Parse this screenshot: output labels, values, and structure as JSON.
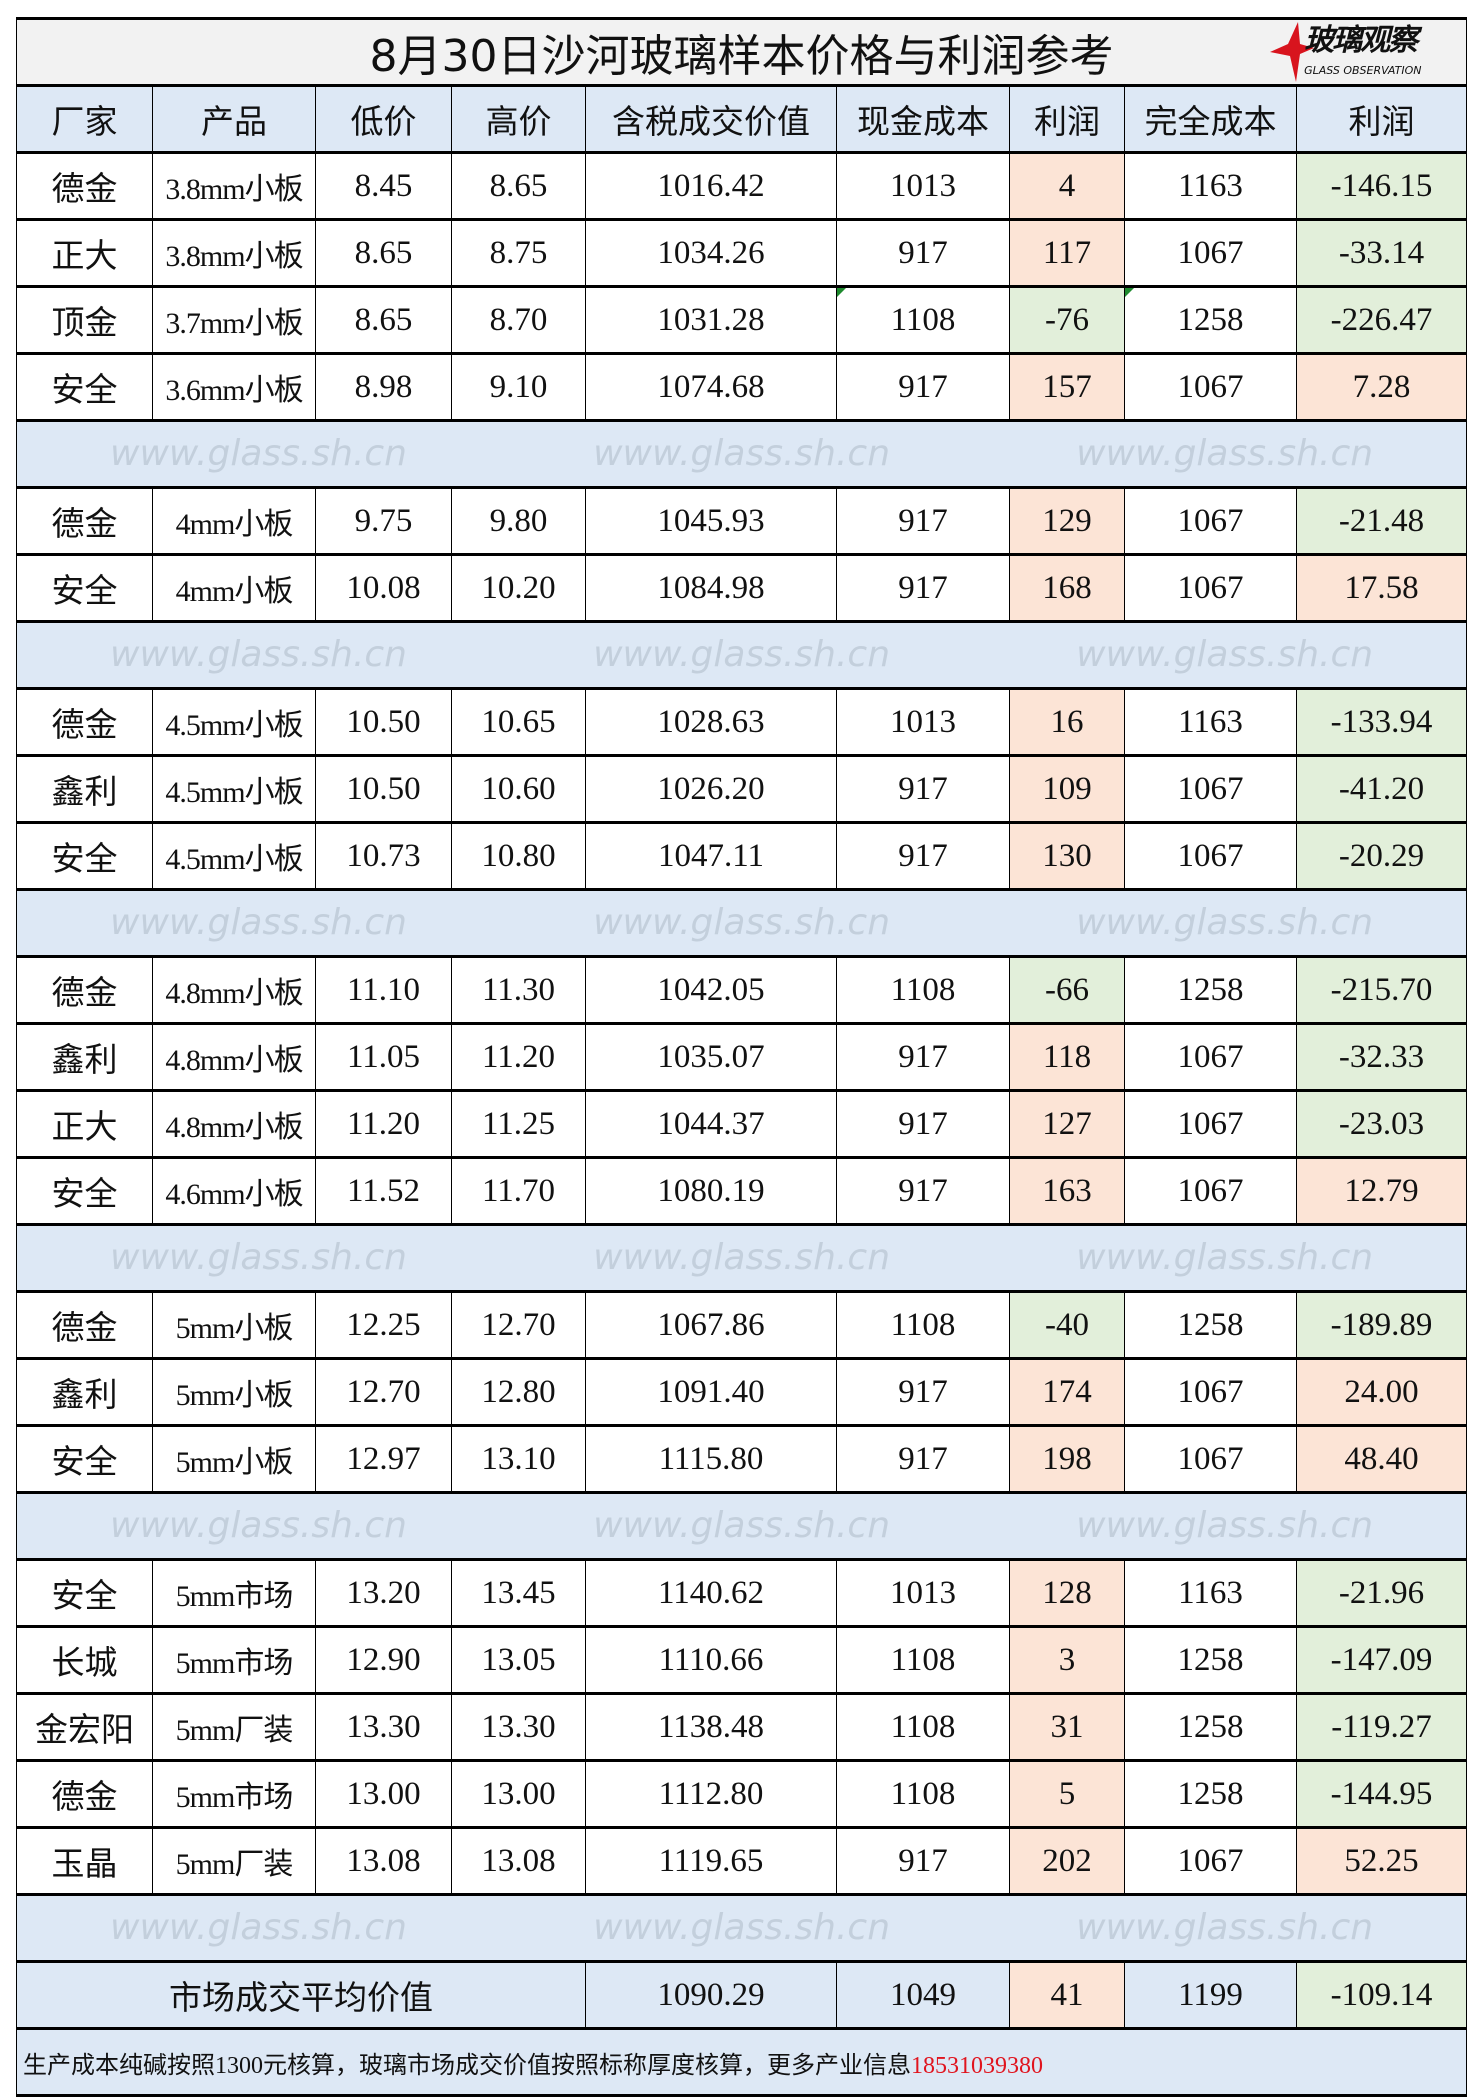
{
  "title": "8月30日沙河玻璃样本价格与利润参考",
  "logo": {
    "text_zh": "玻璃观察",
    "text_en": "GLASS OBSERVATION"
  },
  "watermark": "www.glass.sh.cn",
  "colors": {
    "header_bg": "#dde8f5",
    "profit_positive": "#fce4d6",
    "profit_negative": "#e2efda",
    "title_bg": "#f2f2f2",
    "phone": "#e0141e"
  },
  "headers": [
    "厂家",
    "产品",
    "低价",
    "高价",
    "含税成交价值",
    "现金成本",
    "利润",
    "完全成本",
    "利润"
  ],
  "groups": [
    [
      {
        "vendor": "德金",
        "product": "3.8mm小板",
        "low": "8.45",
        "high": "8.65",
        "value": "1016.42",
        "cash_cost": "1013",
        "cash_profit": "4",
        "full_cost": "1163",
        "full_profit": "-146.15"
      },
      {
        "vendor": "正大",
        "product": "3.8mm小板",
        "low": "8.65",
        "high": "8.75",
        "value": "1034.26",
        "cash_cost": "917",
        "cash_profit": "117",
        "full_cost": "1067",
        "full_profit": "-33.14"
      },
      {
        "vendor": "顶金",
        "product": "3.7mm小板",
        "low": "8.65",
        "high": "8.70",
        "value": "1031.28",
        "cash_cost": "1108",
        "cash_profit": "-76",
        "full_cost": "1258",
        "full_profit": "-226.47",
        "marker": true
      },
      {
        "vendor": "安全",
        "product": "3.6mm小板",
        "low": "8.98",
        "high": "9.10",
        "value": "1074.68",
        "cash_cost": "917",
        "cash_profit": "157",
        "full_cost": "1067",
        "full_profit": "7.28"
      }
    ],
    [
      {
        "vendor": "德金",
        "product": "4mm小板",
        "low": "9.75",
        "high": "9.80",
        "value": "1045.93",
        "cash_cost": "917",
        "cash_profit": "129",
        "full_cost": "1067",
        "full_profit": "-21.48"
      },
      {
        "vendor": "安全",
        "product": "4mm小板",
        "low": "10.08",
        "high": "10.20",
        "value": "1084.98",
        "cash_cost": "917",
        "cash_profit": "168",
        "full_cost": "1067",
        "full_profit": "17.58"
      }
    ],
    [
      {
        "vendor": "德金",
        "product": "4.5mm小板",
        "low": "10.50",
        "high": "10.65",
        "value": "1028.63",
        "cash_cost": "1013",
        "cash_profit": "16",
        "full_cost": "1163",
        "full_profit": "-133.94"
      },
      {
        "vendor": "鑫利",
        "product": "4.5mm小板",
        "low": "10.50",
        "high": "10.60",
        "value": "1026.20",
        "cash_cost": "917",
        "cash_profit": "109",
        "full_cost": "1067",
        "full_profit": "-41.20"
      },
      {
        "vendor": "安全",
        "product": "4.5mm小板",
        "low": "10.73",
        "high": "10.80",
        "value": "1047.11",
        "cash_cost": "917",
        "cash_profit": "130",
        "full_cost": "1067",
        "full_profit": "-20.29"
      }
    ],
    [
      {
        "vendor": "德金",
        "product": "4.8mm小板",
        "low": "11.10",
        "high": "11.30",
        "value": "1042.05",
        "cash_cost": "1108",
        "cash_profit": "-66",
        "full_cost": "1258",
        "full_profit": "-215.70"
      },
      {
        "vendor": "鑫利",
        "product": "4.8mm小板",
        "low": "11.05",
        "high": "11.20",
        "value": "1035.07",
        "cash_cost": "917",
        "cash_profit": "118",
        "full_cost": "1067",
        "full_profit": "-32.33"
      },
      {
        "vendor": "正大",
        "product": "4.8mm小板",
        "low": "11.20",
        "high": "11.25",
        "value": "1044.37",
        "cash_cost": "917",
        "cash_profit": "127",
        "full_cost": "1067",
        "full_profit": "-23.03"
      },
      {
        "vendor": "安全",
        "product": "4.6mm小板",
        "low": "11.52",
        "high": "11.70",
        "value": "1080.19",
        "cash_cost": "917",
        "cash_profit": "163",
        "full_cost": "1067",
        "full_profit": "12.79"
      }
    ],
    [
      {
        "vendor": "德金",
        "product": "5mm小板",
        "low": "12.25",
        "high": "12.70",
        "value": "1067.86",
        "cash_cost": "1108",
        "cash_profit": "-40",
        "full_cost": "1258",
        "full_profit": "-189.89"
      },
      {
        "vendor": "鑫利",
        "product": "5mm小板",
        "low": "12.70",
        "high": "12.80",
        "value": "1091.40",
        "cash_cost": "917",
        "cash_profit": "174",
        "full_cost": "1067",
        "full_profit": "24.00"
      },
      {
        "vendor": "安全",
        "product": "5mm小板",
        "low": "12.97",
        "high": "13.10",
        "value": "1115.80",
        "cash_cost": "917",
        "cash_profit": "198",
        "full_cost": "1067",
        "full_profit": "48.40"
      }
    ],
    [
      {
        "vendor": "安全",
        "product": "5mm市场",
        "low": "13.20",
        "high": "13.45",
        "value": "1140.62",
        "cash_cost": "1013",
        "cash_profit": "128",
        "full_cost": "1163",
        "full_profit": "-21.96"
      },
      {
        "vendor": "长城",
        "product": "5mm市场",
        "low": "12.90",
        "high": "13.05",
        "value": "1110.66",
        "cash_cost": "1108",
        "cash_profit": "3",
        "full_cost": "1258",
        "full_profit": "-147.09"
      },
      {
        "vendor": "金宏阳",
        "product": "5mm厂装",
        "low": "13.30",
        "high": "13.30",
        "value": "1138.48",
        "cash_cost": "1108",
        "cash_profit": "31",
        "full_cost": "1258",
        "full_profit": "-119.27"
      },
      {
        "vendor": "德金",
        "product": "5mm市场",
        "low": "13.00",
        "high": "13.00",
        "value": "1112.80",
        "cash_cost": "1108",
        "cash_profit": "5",
        "full_cost": "1258",
        "full_profit": "-144.95"
      },
      {
        "vendor": "玉晶",
        "product": "5mm厂装",
        "low": "13.08",
        "high": "13.08",
        "value": "1119.65",
        "cash_cost": "917",
        "cash_profit": "202",
        "full_cost": "1067",
        "full_profit": "52.25"
      }
    ]
  ],
  "average": {
    "label": "市场成交平均价值",
    "value": "1090.29",
    "cash_cost": "1049",
    "cash_profit": "41",
    "full_cost": "1199",
    "full_profit": "-109.14"
  },
  "footer": {
    "note": "生产成本纯碱按照1300元核算，玻璃市场成交价值按照标称厚度核算，更多产业信息",
    "phone": "18531039380"
  }
}
